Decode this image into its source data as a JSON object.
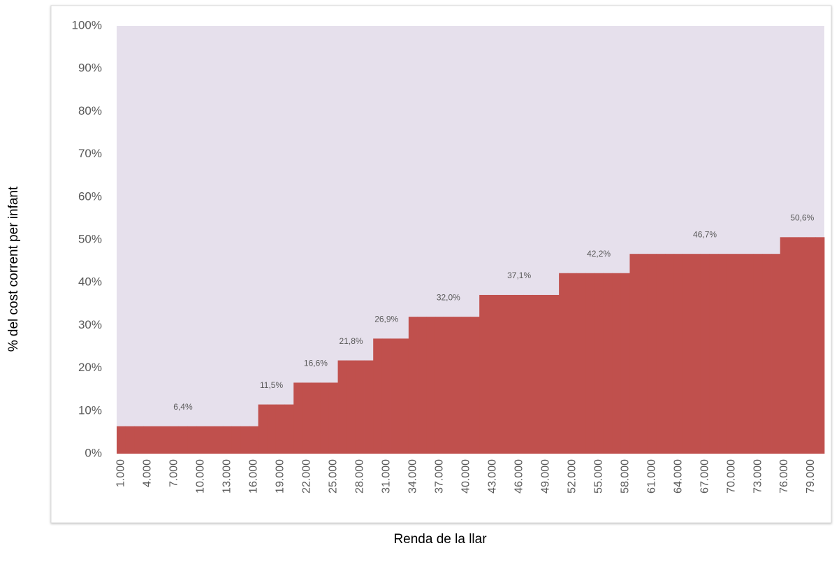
{
  "chart_data": {
    "type": "bar",
    "y_label": "% del cost corrent per infant",
    "x_label": "Renda de la llar",
    "color": "#c0504d",
    "background": "#e6e0ec",
    "ylim": [
      0,
      100
    ],
    "yticks": [
      {
        "value": 0,
        "label": "0%"
      },
      {
        "value": 10,
        "label": "10%"
      },
      {
        "value": 20,
        "label": "20%"
      },
      {
        "value": 30,
        "label": "30%"
      },
      {
        "value": 40,
        "label": "40%"
      },
      {
        "value": 50,
        "label": "50%"
      },
      {
        "value": 60,
        "label": "60%"
      },
      {
        "value": 70,
        "label": "70%"
      },
      {
        "value": 80,
        "label": "80%"
      },
      {
        "value": 90,
        "label": "90%"
      },
      {
        "value": 100,
        "label": "100%"
      }
    ],
    "categories": [
      "1.000",
      null,
      null,
      "4.000",
      null,
      null,
      "7.000",
      null,
      null,
      "10.000",
      null,
      null,
      "13.000",
      null,
      null,
      "16.000",
      null,
      null,
      "19.000",
      null,
      null,
      "22.000",
      null,
      null,
      "25.000",
      null,
      null,
      "28.000",
      null,
      null,
      "31.000",
      null,
      null,
      "34.000",
      null,
      null,
      "37.000",
      null,
      null,
      "40.000",
      null,
      null,
      "43.000",
      null,
      null,
      "46.000",
      null,
      null,
      "49.000",
      null,
      null,
      "52.000",
      null,
      null,
      "55.000",
      null,
      null,
      "58.000",
      null,
      null,
      "61.000",
      null,
      null,
      "64.000",
      null,
      null,
      "67.000",
      null,
      null,
      "70.000",
      null,
      null,
      "73.000",
      null,
      null,
      "76.000",
      null,
      null,
      "79.000",
      null
    ],
    "values": [
      6.4,
      6.4,
      6.4,
      6.4,
      6.4,
      6.4,
      6.4,
      6.4,
      6.4,
      6.4,
      6.4,
      6.4,
      6.4,
      6.4,
      6.4,
      6.4,
      11.5,
      11.5,
      11.5,
      11.5,
      16.6,
      16.6,
      16.6,
      16.6,
      16.6,
      21.8,
      21.8,
      21.8,
      21.8,
      26.9,
      26.9,
      26.9,
      26.9,
      32.0,
      32.0,
      32.0,
      32.0,
      32.0,
      32.0,
      32.0,
      32.0,
      37.1,
      37.1,
      37.1,
      37.1,
      37.1,
      37.1,
      37.1,
      37.1,
      37.1,
      42.2,
      42.2,
      42.2,
      42.2,
      42.2,
      42.2,
      42.2,
      42.2,
      46.7,
      46.7,
      46.7,
      46.7,
      46.7,
      46.7,
      46.7,
      46.7,
      46.7,
      46.7,
      46.7,
      46.7,
      46.7,
      46.7,
      46.7,
      46.7,
      46.7,
      50.6,
      50.6,
      50.6,
      50.6,
      50.6
    ],
    "value_labels": [
      null,
      null,
      null,
      null,
      null,
      null,
      null,
      "6,4%",
      null,
      null,
      null,
      null,
      null,
      null,
      null,
      null,
      null,
      "11,5%",
      null,
      null,
      null,
      null,
      "16,6%",
      null,
      null,
      null,
      "21,8%",
      null,
      null,
      null,
      "26,9%",
      null,
      null,
      null,
      null,
      null,
      null,
      "32,0%",
      null,
      null,
      null,
      null,
      null,
      null,
      null,
      "37,1%",
      null,
      null,
      null,
      null,
      null,
      null,
      null,
      null,
      "42,2%",
      null,
      null,
      null,
      null,
      null,
      null,
      null,
      null,
      null,
      null,
      null,
      "46,7%",
      null,
      null,
      null,
      null,
      null,
      null,
      null,
      null,
      null,
      null,
      "50,6%",
      null,
      null
    ]
  }
}
